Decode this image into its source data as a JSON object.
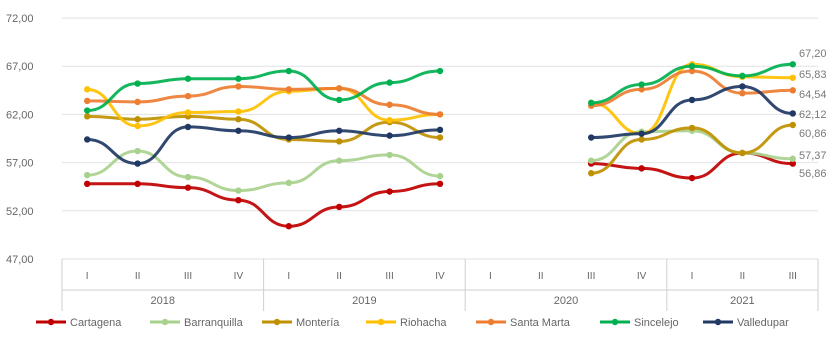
{
  "chart_data": {
    "type": "line",
    "title": "",
    "xlabel": "",
    "ylabel": "",
    "ylim": [
      47,
      72
    ],
    "y_ticks": [
      "72,00",
      "67,00",
      "62,00",
      "57,00",
      "52,00",
      "47,00"
    ],
    "categories": [
      "I",
      "II",
      "III",
      "IV",
      "I",
      "II",
      "III",
      "IV",
      "I",
      "II",
      "III",
      "IV",
      "I",
      "II",
      "III"
    ],
    "years": [
      {
        "label": "2018",
        "span": 4
      },
      {
        "label": "2019",
        "span": 4
      },
      {
        "label": "2020",
        "span": 4
      },
      {
        "label": "2021",
        "span": 3
      }
    ],
    "grid": "horizontal",
    "legend_position": "bottom",
    "end_labels": [
      "67,20",
      "65,83",
      "64,54",
      "62,12",
      "60,86",
      "57,37",
      "56,86"
    ],
    "series": [
      {
        "name": "Cartagena",
        "color": "#c00000",
        "values": [
          54.8,
          54.8,
          54.4,
          53.1,
          50.4,
          52.4,
          54.0,
          54.8,
          null,
          null,
          56.9,
          56.4,
          55.4,
          58.0,
          56.9
        ]
      },
      {
        "name": "Barranquilla",
        "color": "#a9d18e",
        "values": [
          55.7,
          58.2,
          55.5,
          54.1,
          54.9,
          57.2,
          57.8,
          55.6,
          null,
          null,
          57.2,
          60.2,
          60.3,
          58.0,
          57.4
        ]
      },
      {
        "name": "Montería",
        "color": "#bf9000",
        "values": [
          61.8,
          61.5,
          61.8,
          61.5,
          59.4,
          59.2,
          61.2,
          59.6,
          null,
          null,
          55.9,
          59.4,
          60.6,
          58.0,
          60.9
        ]
      },
      {
        "name": "Riohacha",
        "color": "#ffc000",
        "values": [
          64.6,
          60.8,
          62.2,
          62.3,
          64.4,
          64.7,
          61.4,
          62.0,
          null,
          null,
          63.2,
          60.0,
          67.2,
          65.9,
          65.8
        ]
      },
      {
        "name": "Santa Marta",
        "color": "#ed7d31",
        "values": [
          63.4,
          63.3,
          63.9,
          64.9,
          64.6,
          64.7,
          63.0,
          62.0,
          null,
          null,
          62.9,
          64.6,
          66.5,
          64.2,
          64.5
        ]
      },
      {
        "name": "Sincelejo",
        "color": "#00b050",
        "values": [
          62.4,
          65.2,
          65.7,
          65.7,
          66.5,
          63.5,
          65.3,
          66.5,
          null,
          null,
          63.2,
          65.1,
          67.0,
          66.0,
          67.2
        ]
      },
      {
        "name": "Valledupar",
        "color": "#203864",
        "values": [
          59.4,
          56.9,
          60.7,
          60.3,
          59.6,
          60.3,
          59.8,
          60.4,
          null,
          null,
          59.6,
          60.0,
          63.5,
          64.9,
          62.1
        ]
      }
    ]
  }
}
